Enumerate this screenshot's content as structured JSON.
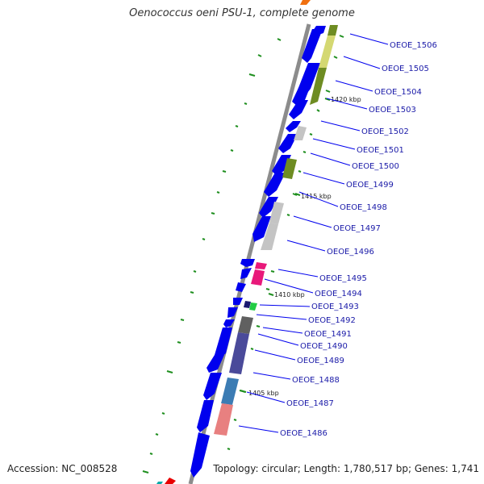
{
  "title": "Oenococcus oeni PSU-1, complete genome",
  "accession": "Accession: NC_008528",
  "stats": "Topology: circular; Length: 1,780,517 bp; Genes: 1,741",
  "ticks": [
    "1420 kbp",
    "1415 kbp",
    "1410 kbp",
    "1405 kbp"
  ],
  "genes": [
    "OEOE_1506",
    "OEOE_1505",
    "OEOE_1504",
    "OEOE_1503",
    "OEOE_1502",
    "OEOE_1501",
    "OEOE_1500",
    "OEOE_1499",
    "OEOE_1498",
    "OEOE_1497",
    "OEOE_1496",
    "OEOE_1495",
    "OEOE_1494",
    "OEOE_1493",
    "OEOE_1492",
    "OEOE_1491",
    "OEOE_1490",
    "OEOE_1489",
    "OEOE_1488",
    "OEOE_1487",
    "OEOE_1486"
  ],
  "colors": {
    "cds": "#0000ee",
    "axis": "#8c8c8c",
    "label": "#1a1aa8",
    "gc": "#1f8f1f",
    "cog_yellowgreen": "#d4d872",
    "cog_olive": "#6e8c22",
    "cog_gray": "#c4c4c4",
    "cog_magenta": "#e8197a",
    "cog_green": "#22cc44",
    "cog_navy": "#1a1a70",
    "cog_darkgray": "#606060",
    "cog_slate": "#4a4a9a",
    "cog_steel": "#3c7cb4",
    "cog_salmon": "#e88080",
    "cog_orange": "#f07010",
    "cog_red": "#e80000"
  }
}
